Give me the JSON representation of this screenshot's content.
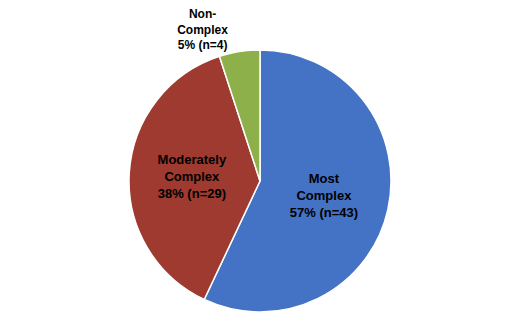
{
  "chart_data": {
    "type": "pie",
    "categories": [
      "Most\nComplex\n57% (n=43)",
      "Moderately\nComplex\n38% (n=29)",
      "Non-\nComplex\n5% (n=4)"
    ],
    "values": [
      57,
      38,
      5
    ],
    "colors": [
      "#4472C4",
      "#9E3A2F",
      "#8DB04A"
    ],
    "data_labels": true
  }
}
